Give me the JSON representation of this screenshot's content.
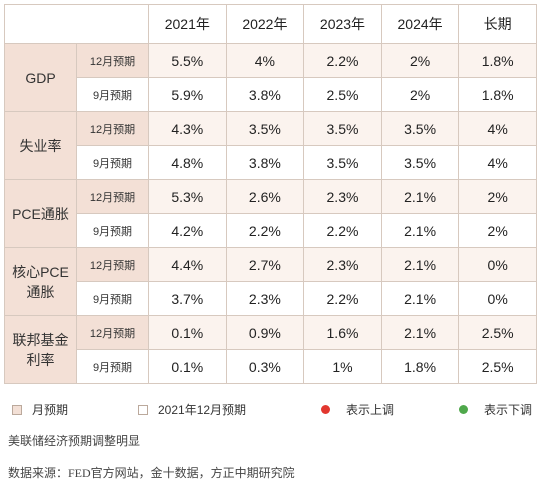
{
  "table": {
    "headers": [
      "2021年",
      "2022年",
      "2023年",
      "2024年",
      "长期"
    ],
    "groups": [
      {
        "metric": "GDP",
        "rows": [
          {
            "label": "12月预期",
            "cells": [
              {
                "v": "5.5%",
                "dir": "down"
              },
              {
                "v": "4%",
                "dir": "up"
              },
              {
                "v": "2.2%",
                "dir": "down"
              },
              {
                "v": "2%",
                "dir": ""
              },
              {
                "v": "1.8%",
                "dir": ""
              }
            ]
          },
          {
            "label": "9月预期",
            "cells": [
              {
                "v": "5.9%",
                "dir": ""
              },
              {
                "v": "3.8%",
                "dir": ""
              },
              {
                "v": "2.5%",
                "dir": ""
              },
              {
                "v": "2%",
                "dir": ""
              },
              {
                "v": "1.8%",
                "dir": ""
              }
            ]
          }
        ]
      },
      {
        "metric": "失业率",
        "rows": [
          {
            "label": "12月预期",
            "cells": [
              {
                "v": "4.3%",
                "dir": "down"
              },
              {
                "v": "3.5%",
                "dir": "down"
              },
              {
                "v": "3.5%",
                "dir": ""
              },
              {
                "v": "3.5%",
                "dir": ""
              },
              {
                "v": "4%",
                "dir": ""
              }
            ]
          },
          {
            "label": "9月预期",
            "cells": [
              {
                "v": "4.8%",
                "dir": ""
              },
              {
                "v": "3.8%",
                "dir": ""
              },
              {
                "v": "3.5%",
                "dir": ""
              },
              {
                "v": "3.5%",
                "dir": ""
              },
              {
                "v": "4%",
                "dir": ""
              }
            ]
          }
        ]
      },
      {
        "metric": "PCE通胀",
        "rows": [
          {
            "label": "12月预期",
            "cells": [
              {
                "v": "5.3%",
                "dir": "up"
              },
              {
                "v": "2.6%",
                "dir": "up"
              },
              {
                "v": "2.3%",
                "dir": "up"
              },
              {
                "v": "2.1%",
                "dir": ""
              },
              {
                "v": "2%",
                "dir": ""
              }
            ]
          },
          {
            "label": "9月预期",
            "cells": [
              {
                "v": "4.2%",
                "dir": ""
              },
              {
                "v": "2.2%",
                "dir": ""
              },
              {
                "v": "2.2%",
                "dir": ""
              },
              {
                "v": "2.1%",
                "dir": ""
              },
              {
                "v": "2%",
                "dir": ""
              }
            ]
          }
        ]
      },
      {
        "metric": "核心PCE通胀",
        "rows": [
          {
            "label": "12月预期",
            "cells": [
              {
                "v": "4.4%",
                "dir": "up"
              },
              {
                "v": "2.7%",
                "dir": "up"
              },
              {
                "v": "2.3%",
                "dir": "up"
              },
              {
                "v": "2.1%",
                "dir": ""
              },
              {
                "v": "0%",
                "dir": ""
              }
            ]
          },
          {
            "label": "9月预期",
            "cells": [
              {
                "v": "3.7%",
                "dir": ""
              },
              {
                "v": "2.3%",
                "dir": ""
              },
              {
                "v": "2.2%",
                "dir": ""
              },
              {
                "v": "2.1%",
                "dir": ""
              },
              {
                "v": "0%",
                "dir": ""
              }
            ]
          }
        ]
      },
      {
        "metric": "联邦基金利率",
        "rows": [
          {
            "label": "12月预期",
            "cells": [
              {
                "v": "0.1%",
                "dir": ""
              },
              {
                "v": "0.9%",
                "dir": "up"
              },
              {
                "v": "1.6%",
                "dir": "up"
              },
              {
                "v": "2.1%",
                "dir": "up"
              },
              {
                "v": "2.5%",
                "dir": ""
              }
            ]
          },
          {
            "label": "9月预期",
            "cells": [
              {
                "v": "0.1%",
                "dir": ""
              },
              {
                "v": "0.3%",
                "dir": ""
              },
              {
                "v": "1%",
                "dir": ""
              },
              {
                "v": "1.8%",
                "dir": ""
              },
              {
                "v": "2.5%",
                "dir": ""
              }
            ]
          }
        ]
      }
    ]
  },
  "legend": {
    "sep_label": "月预期",
    "dec_label": "2021年12月预期",
    "up_label": "表示上调",
    "down_label": "表示下调",
    "up_color": "#e2372f",
    "down_color": "#4fa84b"
  },
  "caption": "美联储经济预期调整明显",
  "source": "数据来源：FED官方网站，金十数据，方正中期研究院"
}
